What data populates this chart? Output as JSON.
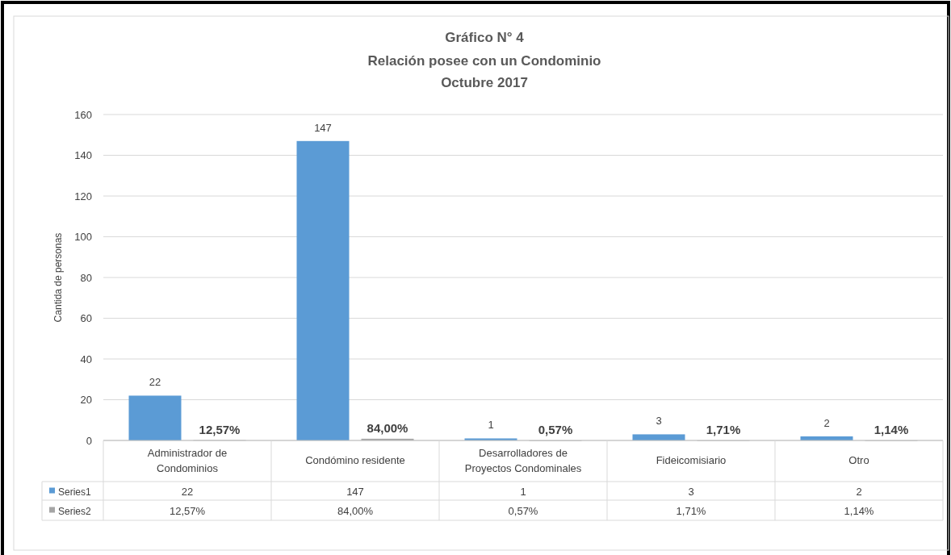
{
  "chart_data": {
    "type": "bar",
    "title": "Gráfico N° 4",
    "subtitle": "Relación posee con un Condominio\nOctubre 2017",
    "ylabel": "Cantida de personas",
    "categories": [
      "Administrador de Condominios",
      "Condómino residente",
      "Desarrolladores de Proyectos Condominales",
      "Fideicomisiario",
      "Otro"
    ],
    "series": [
      {
        "name": "Series1",
        "color": "#5b9bd5",
        "values": [
          22,
          147,
          1,
          3,
          2
        ],
        "value_labels": [
          "22",
          "147",
          "1",
          "3",
          "2"
        ]
      },
      {
        "name": "Series2",
        "color": "#a5a5a5",
        "values": [
          0.1257,
          0.84,
          0.0057,
          0.0171,
          0.0114
        ],
        "value_labels": [
          "12,57%",
          "84,00%",
          "0,57%",
          "1,71%",
          "1,14%"
        ]
      }
    ],
    "ylim": [
      0,
      160
    ],
    "yticks": [
      0,
      20,
      40,
      60,
      80,
      100,
      120,
      140,
      160
    ],
    "grid": "y",
    "legend": "bottom"
  }
}
